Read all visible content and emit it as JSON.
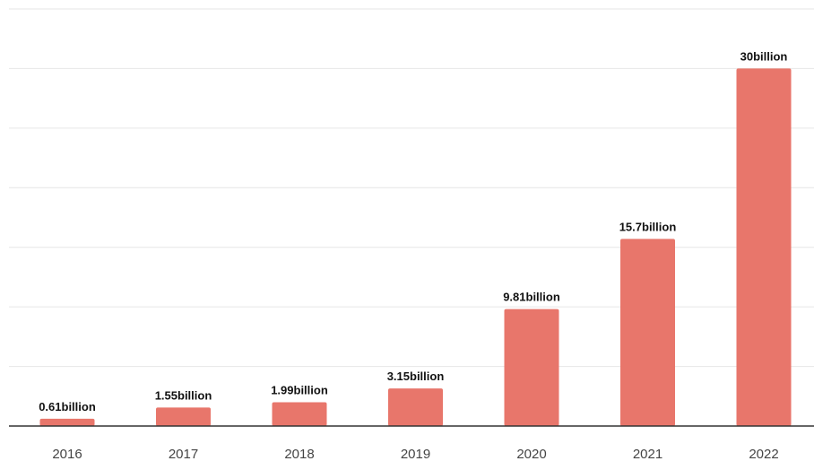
{
  "chart_data": {
    "type": "bar",
    "categories": [
      "2016",
      "2017",
      "2018",
      "2019",
      "2020",
      "2021",
      "2022"
    ],
    "values": [
      0.61,
      1.55,
      1.99,
      3.15,
      9.81,
      15.7,
      30
    ],
    "data_labels": [
      "0.61billion",
      "1.55billion",
      "1.99billion",
      "3.15billion",
      "9.81billion",
      "15.7billion",
      "30billion"
    ],
    "unit": "billion",
    "ylim": [
      0,
      35
    ],
    "y_gridlines": [
      0,
      5,
      10,
      15,
      20,
      25,
      30,
      35
    ],
    "grid": true,
    "y_tick_labels_shown": false,
    "legend": "none",
    "colors": {
      "bar": "#e8766b",
      "grid": "#e6e6e6",
      "axis": "#333333"
    }
  }
}
